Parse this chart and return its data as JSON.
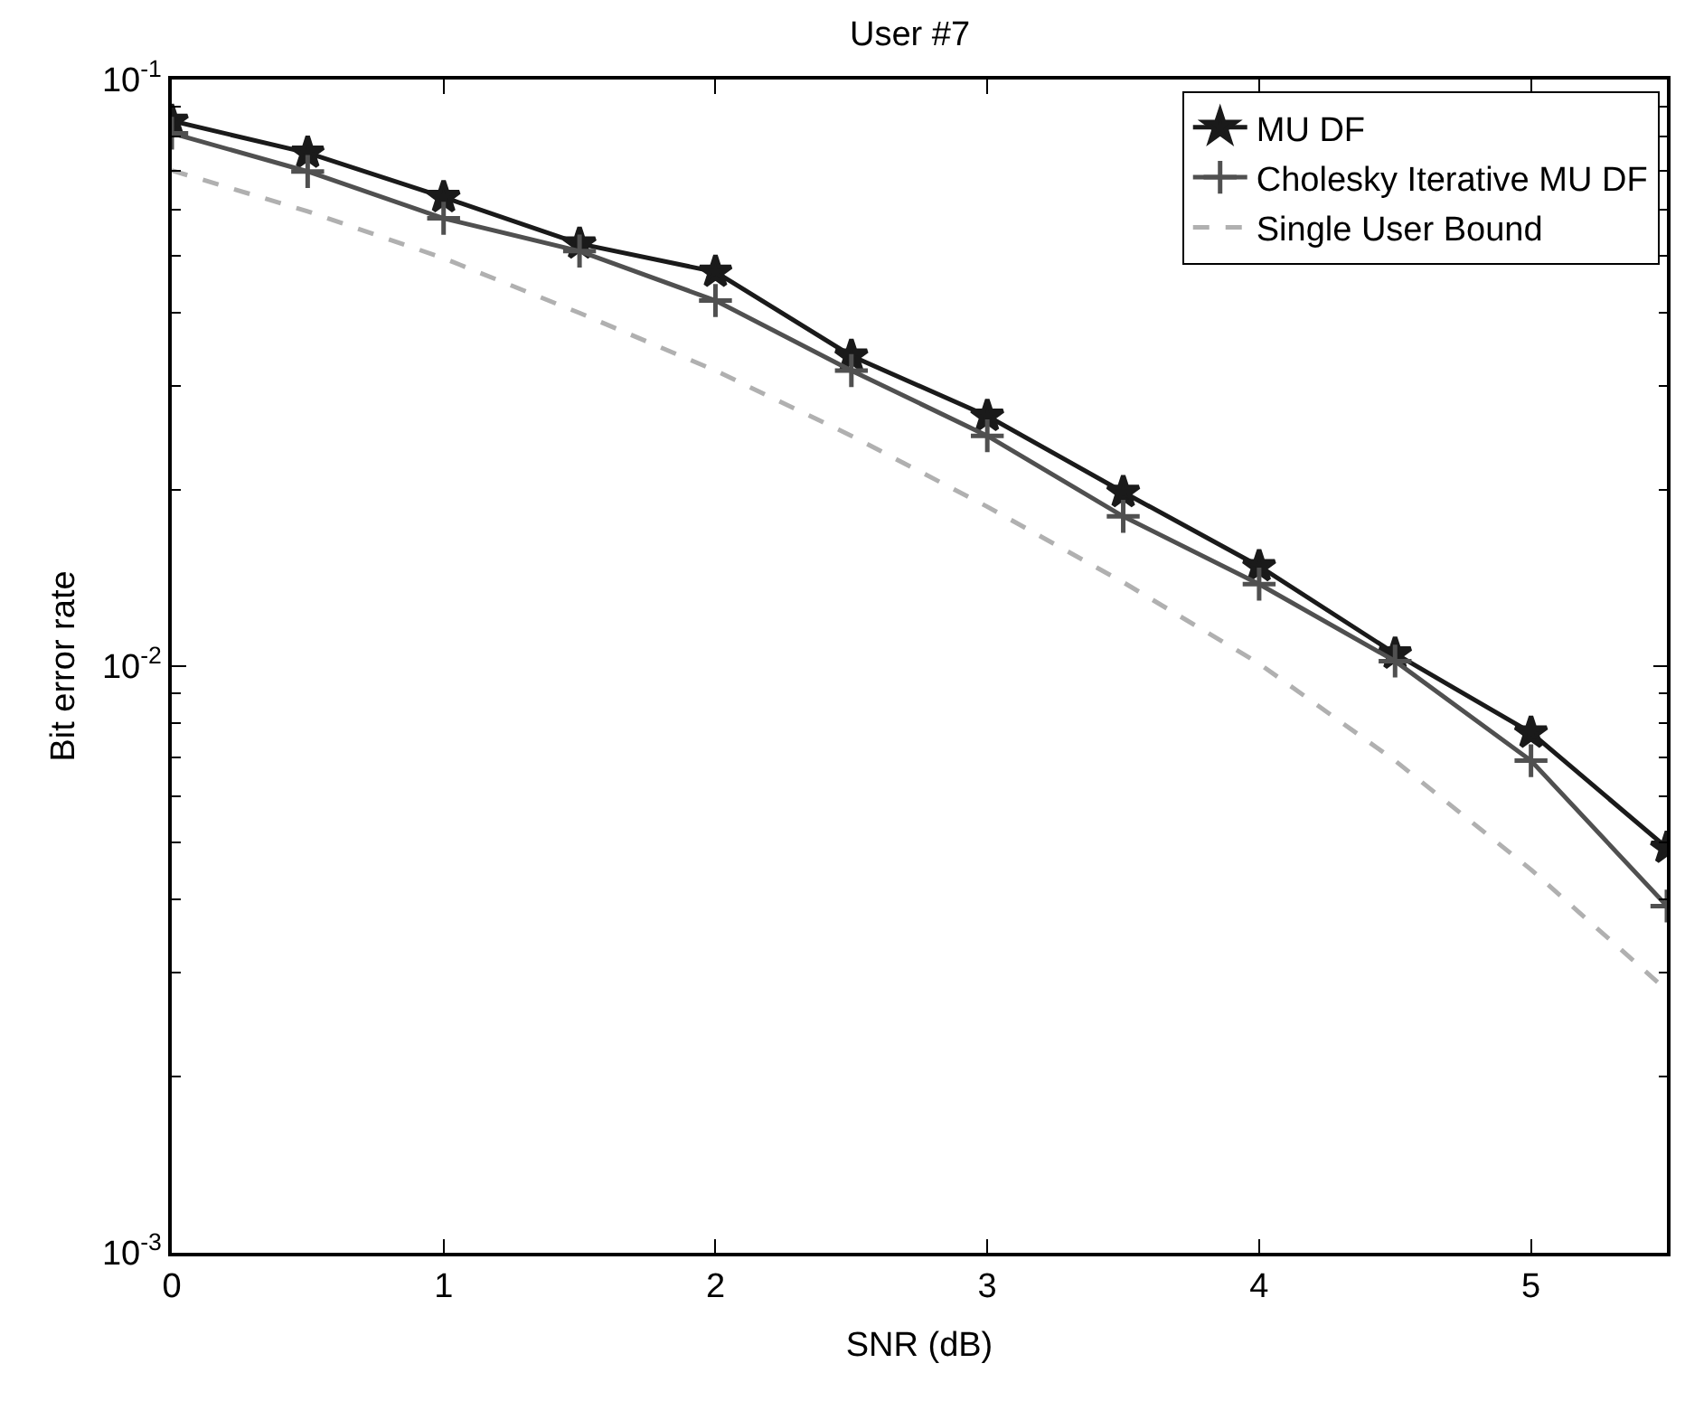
{
  "chart_data": {
    "type": "line",
    "title": "User #7",
    "xlabel": "SNR (dB)",
    "ylabel": "Bit error rate",
    "x": [
      0,
      0.5,
      1,
      1.5,
      2,
      2.5,
      3,
      3.5,
      4,
      4.5,
      5,
      5.5
    ],
    "series": [
      {
        "name": "MU DF",
        "color": "#1a1a1a",
        "marker": "star",
        "line_style": "solid",
        "values": [
          0.085,
          0.075,
          0.063,
          0.0525,
          0.047,
          0.0338,
          0.0267,
          0.0198,
          0.0148,
          0.0105,
          0.0077,
          0.0049
        ]
      },
      {
        "name": "Cholesky Iterative MU DF",
        "color": "#505050",
        "marker": "cross",
        "line_style": "solid",
        "values": [
          0.081,
          0.0697,
          0.058,
          0.051,
          0.042,
          0.0319,
          0.0247,
          0.018,
          0.0138,
          0.0102,
          0.0069,
          0.0039
        ]
      },
      {
        "name": "Single User Bound",
        "color": "#b0b0b0",
        "marker": "none",
        "line_style": "dashed",
        "values": [
          0.07,
          0.0596,
          0.0496,
          0.04,
          0.0319,
          0.0247,
          0.0187,
          0.0139,
          0.0101,
          0.0069,
          0.0045,
          0.0028
        ]
      }
    ],
    "log": "y",
    "xlim": [
      0,
      5.5
    ],
    "xticks": [
      0,
      1,
      2,
      3,
      4,
      5
    ],
    "ylim": [
      0.001,
      0.1
    ],
    "yticks": [
      {
        "value": 0.1,
        "label": "10$^{-1}$"
      },
      {
        "value": 0.01,
        "label": "10$^{-2}$"
      },
      {
        "value": 0.001,
        "label": "10$^{-3}$"
      }
    ],
    "legend": "top right"
  }
}
